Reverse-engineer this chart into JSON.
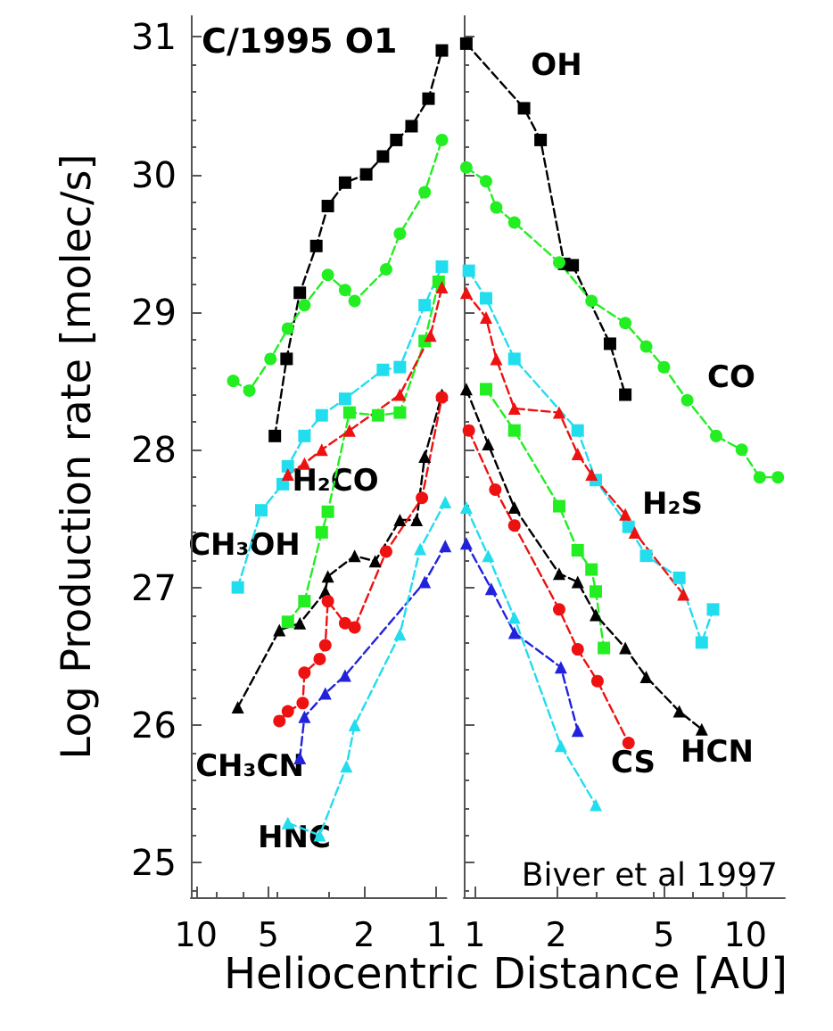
{
  "chart_data": [
    {
      "type": "line",
      "ylabel": "Log Production rate [molec/s]",
      "xlabel": "Heliocentric Distance [AU]",
      "log": "x",
      "xlim": [
        10.5,
        0.91
      ],
      "xticks": [
        10,
        5,
        2,
        1
      ],
      "ylim": [
        24.75,
        31.15
      ],
      "yticks": [
        25,
        26,
        27,
        28,
        29,
        30,
        31
      ],
      "grid": false,
      "line_style": "dashed",
      "annotations": [
        "C/1995 O1",
        "H₂CO",
        "CH₃OH",
        "CH₃CN",
        "HNC"
      ],
      "series": [
        {
          "color": "#000000",
          "marker": "square",
          "x": [
            4.7,
            4.2,
            3.7,
            3.16,
            2.83,
            2.4,
            1.96,
            1.67,
            1.47,
            1.27,
            1.08,
            0.95
          ],
          "values": [
            28.1,
            28.66,
            29.14,
            29.48,
            29.77,
            29.94,
            30.0,
            30.13,
            30.25,
            30.35,
            30.55,
            30.9
          ]
        },
        {
          "color": "#22ee22",
          "marker": "circle",
          "x": [
            7.0,
            6.0,
            4.9,
            4.15,
            3.54,
            2.83,
            2.4,
            2.19,
            1.62,
            1.42,
            1.12,
            0.95
          ],
          "values": [
            28.5,
            28.43,
            28.66,
            28.88,
            29.05,
            29.27,
            29.16,
            29.08,
            29.31,
            29.57,
            29.87,
            30.25
          ]
        },
        {
          "color": "#22ee22",
          "marker": "square",
          "x": [
            4.15,
            3.54,
            3.0,
            2.83,
            2.3,
            1.75,
            1.42,
            1.12,
            0.98
          ],
          "values": [
            26.75,
            26.9,
            27.4,
            27.55,
            28.27,
            28.25,
            28.27,
            28.79,
            29.22
          ]
        },
        {
          "color": "#22ddee",
          "marker": "square",
          "x": [
            6.7,
            5.35,
            4.36,
            4.15,
            3.54,
            3.0,
            2.4,
            1.67,
            1.42,
            1.12,
            0.95
          ],
          "values": [
            27.0,
            27.56,
            27.75,
            27.88,
            28.1,
            28.25,
            28.37,
            28.58,
            28.6,
            29.05,
            29.33
          ]
        },
        {
          "color": "#ee1111",
          "marker": "triangle",
          "x": [
            4.15,
            3.54,
            3.0,
            2.3,
            1.42,
            1.06,
            0.95
          ],
          "values": [
            27.82,
            27.9,
            28.0,
            28.14,
            28.4,
            28.83,
            29.18
          ]
        },
        {
          "color": "#000000",
          "marker": "triangle",
          "x": [
            6.7,
            4.5,
            3.7,
            2.9,
            2.83,
            2.19,
            1.8,
            1.42,
            1.21,
            1.12,
            0.95
          ],
          "values": [
            26.13,
            26.69,
            26.74,
            26.97,
            27.08,
            27.23,
            27.19,
            27.49,
            27.49,
            27.95,
            28.4
          ]
        },
        {
          "color": "#ee1111",
          "marker": "circle",
          "x": [
            4.5,
            4.15,
            3.6,
            3.54,
            3.06,
            2.9,
            2.83,
            2.4,
            2.19,
            1.62,
            1.15,
            0.95
          ],
          "values": [
            26.03,
            26.1,
            26.16,
            26.38,
            26.48,
            26.58,
            26.9,
            26.74,
            26.71,
            27.26,
            27.65,
            28.38
          ]
        },
        {
          "color": "#2222dd",
          "marker": "triangle",
          "x": [
            3.7,
            3.54,
            2.9,
            2.4,
            1.12,
            0.92
          ],
          "values": [
            25.76,
            26.06,
            26.23,
            26.36,
            27.04,
            27.3
          ]
        },
        {
          "color": "#22ddee",
          "marker": "triangle",
          "x": [
            4.15,
            3.06,
            2.37,
            2.19,
            1.42,
            1.17,
            0.92
          ],
          "values": [
            25.29,
            25.2,
            25.7,
            26.0,
            26.66,
            27.28,
            27.62
          ]
        }
      ]
    },
    {
      "type": "line",
      "log": "x",
      "xlim": [
        0.91,
        14
      ],
      "xticks": [
        1,
        2,
        5,
        10
      ],
      "ylim": [
        24.75,
        31.15
      ],
      "yticks": [
        25,
        26,
        27,
        28,
        29,
        30,
        31
      ],
      "tick_labels": "x",
      "grid": false,
      "line_style": "dashed",
      "annotations": [
        "Biver et al 1997",
        "OH",
        "CO",
        "H₂S",
        "CS",
        "HCN"
      ],
      "series": [
        {
          "color": "#000000",
          "marker": "square",
          "x": [
            0.93,
            1.52,
            1.75,
            2.14,
            2.3,
            3.16,
            3.6
          ],
          "values": [
            30.95,
            30.48,
            30.25,
            29.35,
            29.34,
            28.77,
            28.4
          ]
        },
        {
          "color": "#22ee22",
          "marker": "circle",
          "x": [
            0.93,
            1.1,
            1.2,
            1.4,
            2.05,
            2.7,
            3.6,
            4.3,
            5.0,
            6.1,
            7.8,
            9.7,
            11.3,
            13.2
          ],
          "values": [
            30.05,
            29.95,
            29.76,
            29.65,
            29.36,
            29.08,
            28.92,
            28.75,
            28.6,
            28.36,
            28.1,
            28.0,
            27.8,
            27.8
          ]
        },
        {
          "color": "#22ee22",
          "marker": "square",
          "x": [
            1.1,
            1.4,
            2.05,
            2.4,
            2.7,
            2.8,
            3.0
          ],
          "values": [
            28.44,
            28.14,
            27.59,
            27.27,
            27.13,
            26.97,
            26.56
          ]
        },
        {
          "color": "#22ddee",
          "marker": "square",
          "x": [
            0.95,
            1.1,
            1.4,
            2.4,
            2.8,
            3.7,
            4.3,
            5.7,
            6.9,
            7.6
          ],
          "values": [
            29.3,
            29.1,
            28.66,
            28.14,
            27.78,
            27.44,
            27.23,
            27.07,
            26.6,
            26.84
          ]
        },
        {
          "color": "#ee1111",
          "marker": "triangle",
          "x": [
            0.93,
            1.1,
            1.2,
            1.4,
            2.05,
            2.4,
            2.7,
            3.6,
            3.9,
            5.9
          ],
          "values": [
            29.14,
            28.96,
            28.66,
            28.3,
            28.27,
            27.97,
            27.82,
            27.53,
            27.4,
            26.95
          ]
        },
        {
          "color": "#000000",
          "marker": "triangle",
          "x": [
            0.93,
            1.12,
            1.4,
            2.05,
            2.4,
            2.8,
            3.6,
            4.3,
            5.7,
            6.9
          ],
          "values": [
            28.44,
            28.04,
            27.58,
            27.1,
            27.04,
            26.8,
            26.56,
            26.35,
            26.1,
            25.97
          ]
        },
        {
          "color": "#ee1111",
          "marker": "circle",
          "x": [
            0.95,
            1.19,
            1.4,
            2.05,
            2.4,
            2.84,
            3.7
          ],
          "values": [
            28.14,
            27.71,
            27.45,
            26.84,
            26.55,
            26.32,
            25.87
          ]
        },
        {
          "color": "#2222dd",
          "marker": "triangle",
          "x": [
            0.93,
            1.15,
            1.4,
            2.08,
            2.4
          ],
          "values": [
            27.32,
            26.99,
            26.67,
            26.42,
            25.96
          ]
        },
        {
          "color": "#22ddee",
          "marker": "triangle",
          "x": [
            0.93,
            1.12,
            1.4,
            2.08,
            2.8
          ],
          "values": [
            27.58,
            27.23,
            26.78,
            25.85,
            25.42
          ]
        }
      ]
    }
  ]
}
